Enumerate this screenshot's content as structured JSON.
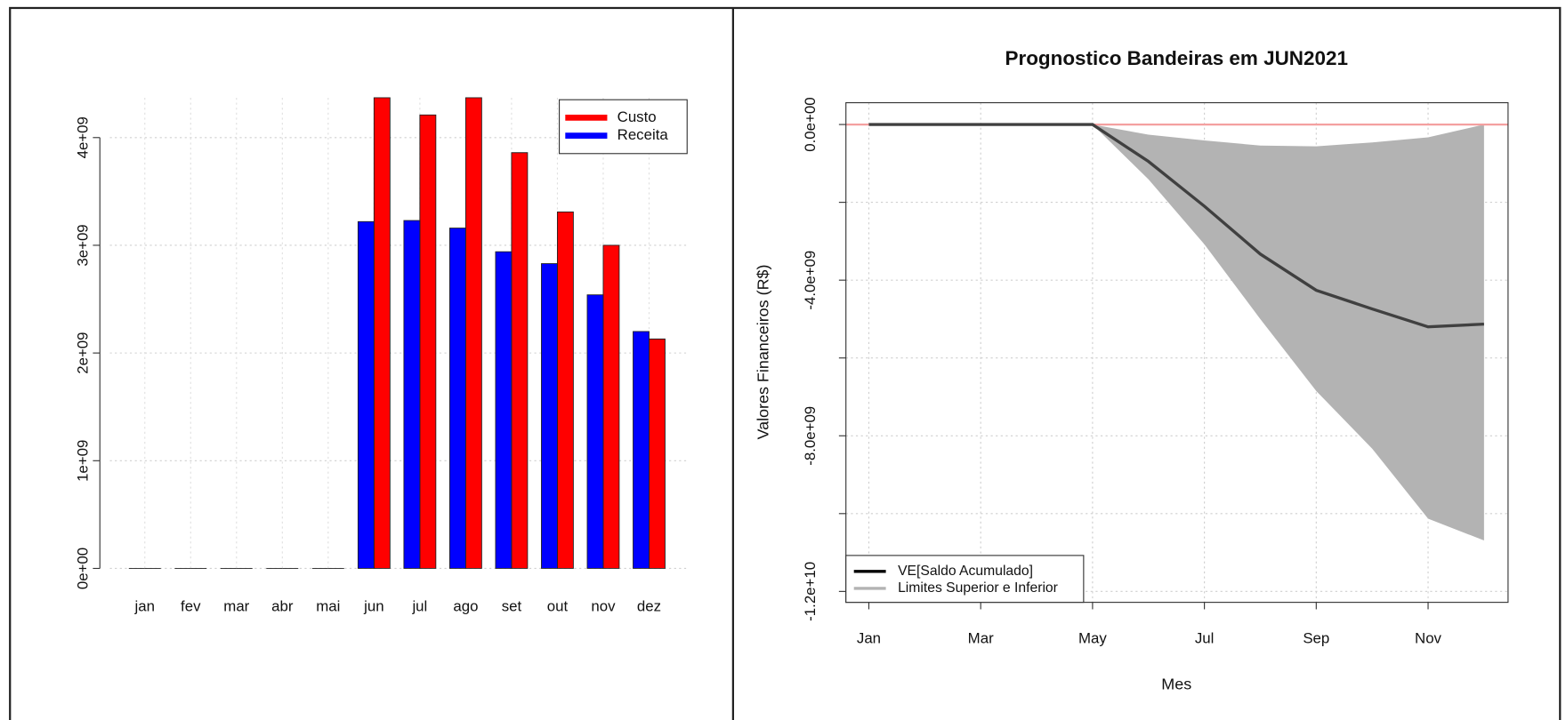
{
  "chart_data": [
    {
      "type": "bar",
      "categories": [
        "jan",
        "fev",
        "mar",
        "abr",
        "mai",
        "jun",
        "jul",
        "ago",
        "set",
        "out",
        "nov",
        "dez"
      ],
      "series": [
        {
          "name": "Custo",
          "color": "#ff0000",
          "values": [
            0,
            0,
            0,
            0,
            0,
            4370000000,
            4210000000,
            4370000000,
            3860000000,
            3310000000,
            3000000000,
            2130000000
          ]
        },
        {
          "name": "Receita",
          "color": "#0000ff",
          "values": [
            0,
            0,
            0,
            0,
            0,
            3220000000,
            3230000000,
            3160000000,
            2940000000,
            2830000000,
            2540000000,
            2200000000
          ]
        }
      ],
      "ylim": [
        0,
        4370000000
      ],
      "yticks": [
        {
          "value": 0,
          "label": "0e+00"
        },
        {
          "value": 1000000000,
          "label": "1e+09"
        },
        {
          "value": 2000000000,
          "label": "2e+09"
        },
        {
          "value": 3000000000,
          "label": "3e+09"
        },
        {
          "value": 4000000000,
          "label": "4e+09"
        }
      ],
      "grid": true,
      "legend": "top-right"
    },
    {
      "type": "line",
      "title": "Prognostico Bandeiras em JUN2021",
      "xlabel": "Mes",
      "ylabel": "Valores Financeiros (R$)",
      "x": [
        1,
        2,
        3,
        4,
        5,
        6,
        7,
        8,
        9,
        10,
        11,
        12
      ],
      "series": [
        {
          "name": "VE[Saldo Acumulado]",
          "color": "#404040",
          "values": [
            0,
            0,
            0,
            0,
            0,
            -950000000,
            -2100000000,
            -3330000000,
            -4260000000,
            -4740000000,
            -5200000000,
            -5130000000
          ]
        },
        {
          "name": "Limites Superior e Inferior",
          "color": "#b3b3b3",
          "upper": [
            0,
            0,
            0,
            0,
            0,
            -260000000,
            -410000000,
            -540000000,
            -560000000,
            -460000000,
            -330000000,
            0
          ],
          "lower": [
            0,
            0,
            0,
            0,
            0,
            -1410000000,
            -3080000000,
            -5000000000,
            -6850000000,
            -8330000000,
            -10130000000,
            -10690000000
          ]
        }
      ],
      "hline": {
        "value": 0,
        "color": "#f4a0a0"
      },
      "xlim": [
        0.59,
        12.43
      ],
      "xticks": [
        {
          "value": 1,
          "label": "Jan"
        },
        {
          "value": 3,
          "label": "Mar"
        },
        {
          "value": 5,
          "label": "May"
        },
        {
          "value": 7,
          "label": "Jul"
        },
        {
          "value": 9,
          "label": "Sep"
        },
        {
          "value": 11,
          "label": "Nov"
        }
      ],
      "ylim": [
        -12280000000,
        560000000
      ],
      "yticks": [
        {
          "value": 0,
          "label": "0.0e+00"
        },
        {
          "value": -2000000000,
          "label": null
        },
        {
          "value": -4000000000,
          "label": "-4.0e+09"
        },
        {
          "value": -6000000000,
          "label": null
        },
        {
          "value": -8000000000,
          "label": "-8.0e+09"
        },
        {
          "value": -10000000000,
          "label": null
        },
        {
          "value": -12000000000,
          "label": "-1.2e+10"
        }
      ],
      "grid": true,
      "legend": "bottom-left"
    }
  ]
}
